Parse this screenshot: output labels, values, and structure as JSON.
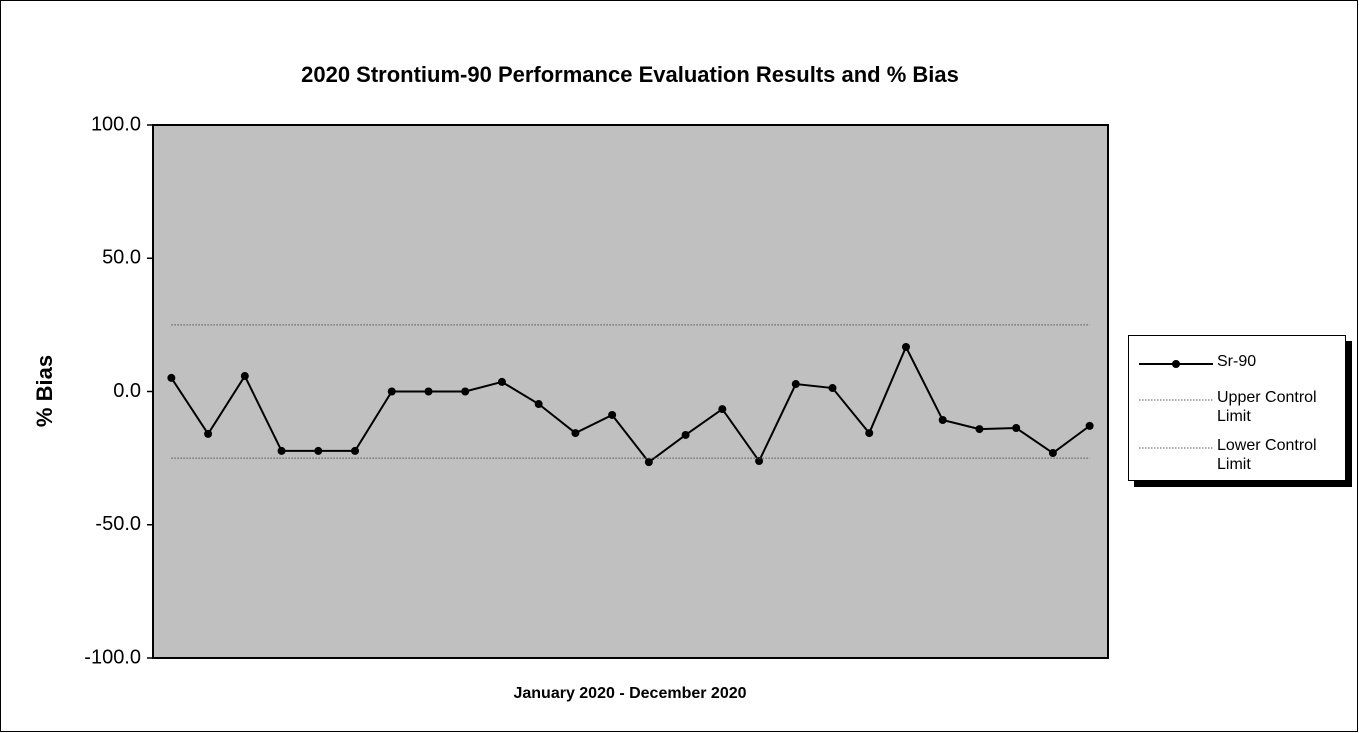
{
  "chart_data": {
    "type": "line",
    "title": "2020 Strontium-90 Performance Evaluation Results and % Bias",
    "xlabel": "January 2020 - December 2020",
    "ylabel": "% Bias",
    "categories": [
      null,
      null,
      null,
      null,
      null,
      null,
      null,
      null,
      null,
      null,
      null,
      null,
      null,
      null,
      null,
      null,
      null,
      null,
      null,
      null,
      null,
      null,
      null,
      null,
      null,
      null
    ],
    "series": [
      {
        "name": "Sr-90",
        "color": "#000000",
        "style": "solid",
        "marker": true,
        "values": [
          5.1,
          -15.9,
          5.8,
          -22.3,
          -22.3,
          -22.3,
          0,
          0,
          0,
          3.6,
          -4.7,
          -15.6,
          -8.8,
          -26.5,
          -16.3,
          -6.6,
          -26.1,
          2.8,
          1.3,
          -15.6,
          16.7,
          -10.7,
          -14.1,
          -13.7,
          -23.1,
          -12.9
        ]
      },
      {
        "name": "Upper Control Limit",
        "color": "#555555",
        "style": "dotted",
        "marker": false,
        "values": [
          25,
          25,
          25,
          25,
          25,
          25,
          25,
          25,
          25,
          25,
          25,
          25,
          25,
          25,
          25,
          25,
          25,
          25,
          25,
          25,
          25,
          25,
          25,
          25,
          25,
          25
        ]
      },
      {
        "name": "Lower Control Limit",
        "color": "#555555",
        "style": "dotted",
        "marker": false,
        "values": [
          -25,
          -25,
          -25,
          -25,
          -25,
          -25,
          -25,
          -25,
          -25,
          -25,
          -25,
          -25,
          -25,
          -25,
          -25,
          -25,
          -25,
          -25,
          -25,
          -25,
          -25,
          -25,
          -25,
          -25,
          -25,
          -25
        ]
      }
    ],
    "ylim": [
      -100,
      100
    ],
    "yticks": [
      {
        "value": -100,
        "label": "-100.0"
      },
      {
        "value": -50,
        "label": "-50.0"
      },
      {
        "value": 0,
        "label": "0.0"
      },
      {
        "value": 50,
        "label": "50.0"
      },
      {
        "value": 100,
        "label": "100.0"
      }
    ],
    "plot_background": "#c0c0c0",
    "legend": "right"
  }
}
